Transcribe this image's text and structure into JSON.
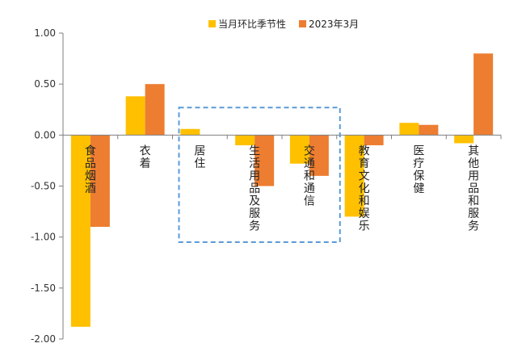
{
  "chart_data": {
    "type": "bar",
    "categories": [
      "食品烟酒",
      "衣着",
      "居住",
      "生活用品及服务",
      "交通和通信",
      "教育文化和娱乐",
      "医疗保健",
      "其他用品和服务"
    ],
    "series": [
      {
        "name": "当月环比季节性",
        "color": "#FFC000",
        "values": [
          -1.88,
          0.38,
          0.06,
          -0.1,
          -0.28,
          -0.8,
          0.12,
          -0.08
        ]
      },
      {
        "name": "2023年3月",
        "color": "#ED7D31",
        "values": [
          -0.9,
          0.5,
          0.0,
          -0.5,
          -0.4,
          -0.1,
          0.1,
          0.8
        ]
      }
    ],
    "ylim": [
      -2.0,
      1.0
    ],
    "yticks": [
      "1.00",
      "0.50",
      "0.00",
      "-0.50",
      "-1.00",
      "-1.50",
      "-2.00"
    ],
    "ytick_values": [
      1.0,
      0.5,
      0.0,
      -0.5,
      -1.0,
      -1.5,
      -2.0
    ],
    "legend_position": "top",
    "grid": false,
    "highlight": {
      "from_category": 2,
      "to_category": 4,
      "y_top": 0.27,
      "y_bottom": -1.05,
      "color": "#5B9BD5"
    }
  }
}
